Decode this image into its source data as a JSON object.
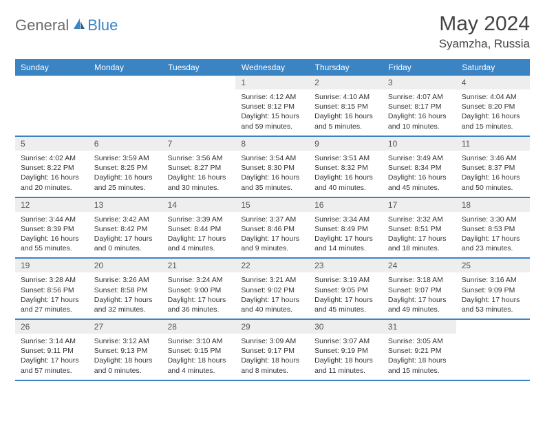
{
  "logo": {
    "general": "General",
    "blue": "Blue"
  },
  "title": "May 2024",
  "location": "Syamzha, Russia",
  "colors": {
    "header_bg": "#3a84c4",
    "header_text": "#ffffff",
    "daynum_bg": "#eeeeee",
    "border": "#3a84c4",
    "text": "#333333",
    "logo_gray": "#6b6b6b",
    "logo_blue": "#3a84c4",
    "page_bg": "#ffffff"
  },
  "weekdays": [
    "Sunday",
    "Monday",
    "Tuesday",
    "Wednesday",
    "Thursday",
    "Friday",
    "Saturday"
  ],
  "first_day_index": 3,
  "days": [
    {
      "n": 1,
      "sunrise": "4:12 AM",
      "sunset": "8:12 PM",
      "daylight": "15 hours and 59 minutes."
    },
    {
      "n": 2,
      "sunrise": "4:10 AM",
      "sunset": "8:15 PM",
      "daylight": "16 hours and 5 minutes."
    },
    {
      "n": 3,
      "sunrise": "4:07 AM",
      "sunset": "8:17 PM",
      "daylight": "16 hours and 10 minutes."
    },
    {
      "n": 4,
      "sunrise": "4:04 AM",
      "sunset": "8:20 PM",
      "daylight": "16 hours and 15 minutes."
    },
    {
      "n": 5,
      "sunrise": "4:02 AM",
      "sunset": "8:22 PM",
      "daylight": "16 hours and 20 minutes."
    },
    {
      "n": 6,
      "sunrise": "3:59 AM",
      "sunset": "8:25 PM",
      "daylight": "16 hours and 25 minutes."
    },
    {
      "n": 7,
      "sunrise": "3:56 AM",
      "sunset": "8:27 PM",
      "daylight": "16 hours and 30 minutes."
    },
    {
      "n": 8,
      "sunrise": "3:54 AM",
      "sunset": "8:30 PM",
      "daylight": "16 hours and 35 minutes."
    },
    {
      "n": 9,
      "sunrise": "3:51 AM",
      "sunset": "8:32 PM",
      "daylight": "16 hours and 40 minutes."
    },
    {
      "n": 10,
      "sunrise": "3:49 AM",
      "sunset": "8:34 PM",
      "daylight": "16 hours and 45 minutes."
    },
    {
      "n": 11,
      "sunrise": "3:46 AM",
      "sunset": "8:37 PM",
      "daylight": "16 hours and 50 minutes."
    },
    {
      "n": 12,
      "sunrise": "3:44 AM",
      "sunset": "8:39 PM",
      "daylight": "16 hours and 55 minutes."
    },
    {
      "n": 13,
      "sunrise": "3:42 AM",
      "sunset": "8:42 PM",
      "daylight": "17 hours and 0 minutes."
    },
    {
      "n": 14,
      "sunrise": "3:39 AM",
      "sunset": "8:44 PM",
      "daylight": "17 hours and 4 minutes."
    },
    {
      "n": 15,
      "sunrise": "3:37 AM",
      "sunset": "8:46 PM",
      "daylight": "17 hours and 9 minutes."
    },
    {
      "n": 16,
      "sunrise": "3:34 AM",
      "sunset": "8:49 PM",
      "daylight": "17 hours and 14 minutes."
    },
    {
      "n": 17,
      "sunrise": "3:32 AM",
      "sunset": "8:51 PM",
      "daylight": "17 hours and 18 minutes."
    },
    {
      "n": 18,
      "sunrise": "3:30 AM",
      "sunset": "8:53 PM",
      "daylight": "17 hours and 23 minutes."
    },
    {
      "n": 19,
      "sunrise": "3:28 AM",
      "sunset": "8:56 PM",
      "daylight": "17 hours and 27 minutes."
    },
    {
      "n": 20,
      "sunrise": "3:26 AM",
      "sunset": "8:58 PM",
      "daylight": "17 hours and 32 minutes."
    },
    {
      "n": 21,
      "sunrise": "3:24 AM",
      "sunset": "9:00 PM",
      "daylight": "17 hours and 36 minutes."
    },
    {
      "n": 22,
      "sunrise": "3:21 AM",
      "sunset": "9:02 PM",
      "daylight": "17 hours and 40 minutes."
    },
    {
      "n": 23,
      "sunrise": "3:19 AM",
      "sunset": "9:05 PM",
      "daylight": "17 hours and 45 minutes."
    },
    {
      "n": 24,
      "sunrise": "3:18 AM",
      "sunset": "9:07 PM",
      "daylight": "17 hours and 49 minutes."
    },
    {
      "n": 25,
      "sunrise": "3:16 AM",
      "sunset": "9:09 PM",
      "daylight": "17 hours and 53 minutes."
    },
    {
      "n": 26,
      "sunrise": "3:14 AM",
      "sunset": "9:11 PM",
      "daylight": "17 hours and 57 minutes."
    },
    {
      "n": 27,
      "sunrise": "3:12 AM",
      "sunset": "9:13 PM",
      "daylight": "18 hours and 0 minutes."
    },
    {
      "n": 28,
      "sunrise": "3:10 AM",
      "sunset": "9:15 PM",
      "daylight": "18 hours and 4 minutes."
    },
    {
      "n": 29,
      "sunrise": "3:09 AM",
      "sunset": "9:17 PM",
      "daylight": "18 hours and 8 minutes."
    },
    {
      "n": 30,
      "sunrise": "3:07 AM",
      "sunset": "9:19 PM",
      "daylight": "18 hours and 11 minutes."
    },
    {
      "n": 31,
      "sunrise": "3:05 AM",
      "sunset": "9:21 PM",
      "daylight": "18 hours and 15 minutes."
    }
  ],
  "labels": {
    "sunrise": "Sunrise:",
    "sunset": "Sunset:",
    "daylight": "Daylight:"
  },
  "typography": {
    "title_fontsize": 30,
    "location_fontsize": 17,
    "header_fontsize": 12,
    "cell_fontsize": 10.5
  }
}
